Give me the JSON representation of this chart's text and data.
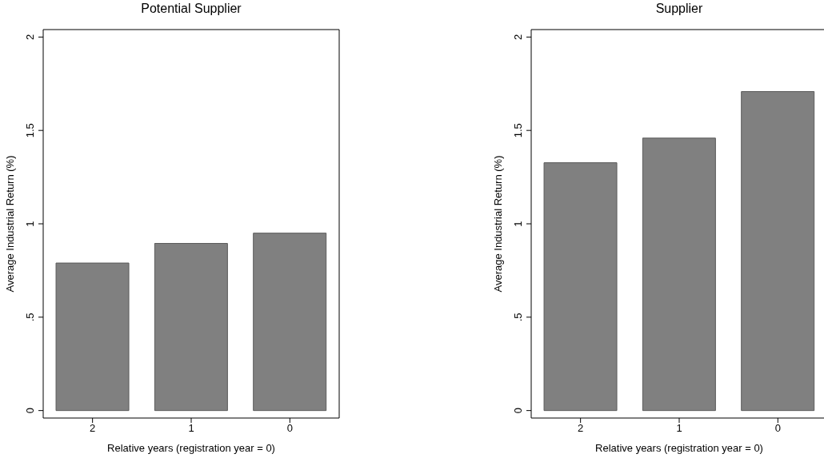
{
  "chart_data": [
    {
      "type": "bar",
      "title": "Potential Supplier",
      "xlabel": "Relative years (registration year = 0)",
      "ylabel": "Average Industrial Return (%)",
      "categories": [
        "2",
        "1",
        "0"
      ],
      "values": [
        0.79,
        0.895,
        0.95
      ],
      "color": "#808080",
      "ylim": [
        -0.04,
        2.04
      ],
      "yticks": [
        0,
        {
          "value": 0.5,
          "label": ".5"
        },
        1,
        1.5,
        2
      ],
      "grid": false
    },
    {
      "type": "bar",
      "title": "Supplier",
      "xlabel": "Relative years (registration year = 0)",
      "ylabel": "Average Industrial Return (%)",
      "categories": [
        "2",
        "1",
        "0"
      ],
      "values": [
        1.327,
        1.459,
        1.708
      ],
      "color": "#808080",
      "ylim": [
        -0.04,
        2.04
      ],
      "yticks": [
        0,
        {
          "value": 0.5,
          "label": ".5"
        },
        1,
        1.5,
        2
      ],
      "grid": false
    }
  ]
}
